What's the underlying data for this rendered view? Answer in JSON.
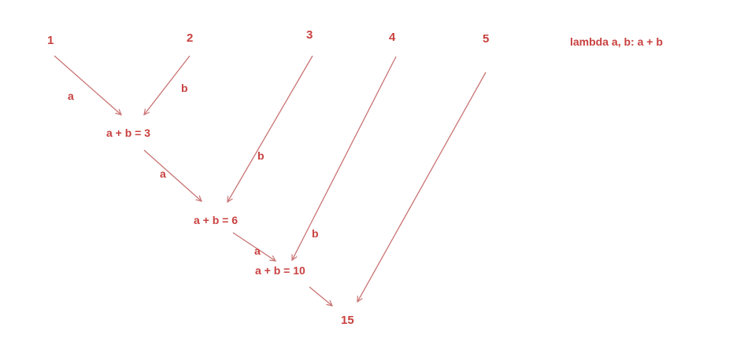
{
  "lambda_label": "lambda a, b: a + b",
  "inputs": [
    "1",
    "2",
    "3",
    "4",
    "5"
  ],
  "steps": [
    "a + b = 3",
    "a + b = 6",
    "a + b = 10"
  ],
  "result": "15",
  "edge_labels": {
    "a": "a",
    "b": "b"
  },
  "colors": {
    "text": "#c8413f",
    "line": "#c97373"
  }
}
